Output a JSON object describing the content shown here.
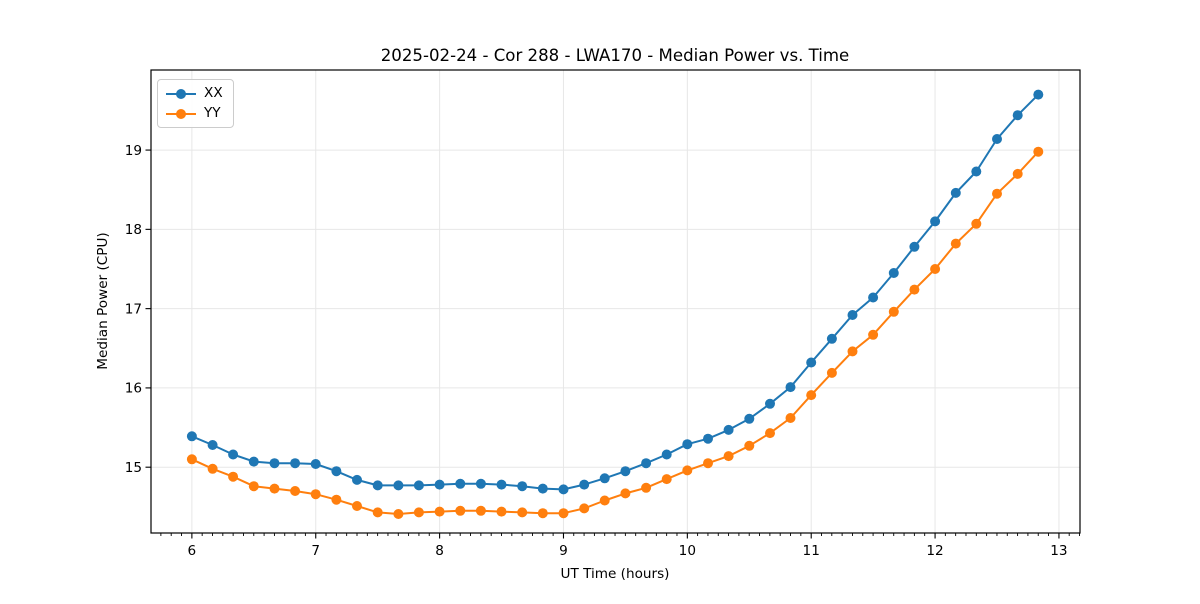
{
  "chart_data": {
    "type": "line",
    "title": "2025-02-24 - Cor 288 - LWA170 - Median Power vs. Time",
    "xlabel": "UT Time (hours)",
    "ylabel": "Median Power (CPU)",
    "xlim": [
      5.67,
      13.17
    ],
    "ylim": [
      14.17,
      20.01
    ],
    "xticks": [
      6,
      7,
      8,
      9,
      10,
      11,
      12,
      13
    ],
    "yticks": [
      15,
      16,
      17,
      18,
      19
    ],
    "x_minor_tick_step": 0.08333,
    "grid": "major",
    "grid_color": "#e7e7e7",
    "legend_position": "upper-left",
    "x": [
      6.0,
      6.167,
      6.333,
      6.5,
      6.667,
      6.833,
      7.0,
      7.167,
      7.333,
      7.5,
      7.667,
      7.833,
      8.0,
      8.167,
      8.333,
      8.5,
      8.667,
      8.833,
      9.0,
      9.167,
      9.333,
      9.5,
      9.667,
      9.833,
      10.0,
      10.167,
      10.333,
      10.5,
      10.667,
      10.833,
      11.0,
      11.167,
      11.333,
      11.5,
      11.667,
      11.833,
      12.0,
      12.167,
      12.333,
      12.5,
      12.667,
      12.833
    ],
    "series": [
      {
        "name": "XX",
        "color": "#1f77b4",
        "values": [
          15.39,
          15.28,
          15.16,
          15.07,
          15.05,
          15.05,
          15.04,
          14.95,
          14.84,
          14.77,
          14.77,
          14.77,
          14.78,
          14.79,
          14.79,
          14.78,
          14.76,
          14.73,
          14.72,
          14.78,
          14.86,
          14.95,
          15.05,
          15.16,
          15.29,
          15.36,
          15.47,
          15.61,
          15.8,
          16.01,
          16.32,
          16.62,
          16.92,
          17.14,
          17.45,
          17.78,
          18.1,
          18.46,
          18.73,
          19.14,
          19.44,
          19.7
        ]
      },
      {
        "name": "YY",
        "color": "#ff7f0e",
        "values": [
          15.1,
          14.98,
          14.88,
          14.76,
          14.73,
          14.7,
          14.66,
          14.59,
          14.51,
          14.43,
          14.41,
          14.43,
          14.44,
          14.45,
          14.45,
          14.44,
          14.43,
          14.42,
          14.42,
          14.48,
          14.58,
          14.67,
          14.74,
          14.85,
          14.96,
          15.05,
          15.14,
          15.27,
          15.43,
          15.62,
          15.91,
          16.19,
          16.46,
          16.67,
          16.96,
          17.24,
          17.5,
          17.82,
          18.07,
          18.45,
          18.7,
          18.98
        ]
      }
    ]
  }
}
